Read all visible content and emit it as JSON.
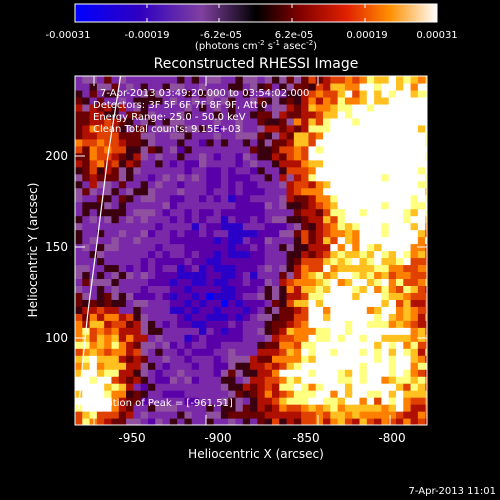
{
  "colorbar": {
    "ticks": [
      "-0.00031",
      "-0.00019",
      "-6.2e-05",
      "6.2e-05",
      "0.00019",
      "0.00031"
    ],
    "units_main": "(photons cm",
    "units_sup1": "-2",
    "units_mid": " s",
    "units_sup2": "-1",
    "units_mid2": " asec",
    "units_sup3": "-2",
    "units_end": ")"
  },
  "plot": {
    "title": "Reconstructed RHESSI Image",
    "xlabel": "Heliocentric X (arcsec)",
    "ylabel": "Heliocentric Y (arcsec)",
    "xticks": [
      "-950",
      "-900",
      "-850",
      "-800"
    ],
    "yticks": [
      "100",
      "150",
      "200"
    ],
    "info_lines": [
      "7-Apr-2013 03:49:20.000 to 03:54:02.000",
      "Detectors: 3F 5F 6F 7F 8F 9F, Att 0",
      "Energy Range: 25.0 - 50.0 keV",
      "Clean     Total counts: 9.15E+03"
    ],
    "peak_text": "Position of Peak = [-961,51]"
  },
  "footer": {
    "timestamp": "7-Apr-2013 11:01"
  },
  "chart_data": {
    "type": "heatmap",
    "title": "Reconstructed RHESSI Image",
    "xlabel": "Heliocentric X (arcsec)",
    "ylabel": "Heliocentric Y (arcsec)",
    "xlim": [
      -970,
      -777
    ],
    "ylim": [
      46,
      246
    ],
    "colorbar_range": [
      -0.00031,
      0.00031
    ],
    "colormap": [
      "#0000ff",
      "#2a00c8",
      "#5a00a8",
      "#7a2aa8",
      "#9050a0",
      "#3a0010",
      "#6a0000",
      "#b01000",
      "#e04000",
      "#ff8000",
      "#ffc020",
      "#ffff80",
      "#ffffff"
    ],
    "peak_position": [
      -961,
      51
    ],
    "limb_curve": [
      [
        -945,
        246
      ],
      [
        -952,
        200
      ],
      [
        -958,
        150
      ],
      [
        -963,
        110
      ],
      [
        -966,
        80
      ],
      [
        -968,
        55
      ]
    ],
    "bright_regions": [
      {
        "x": -962,
        "y": 58,
        "r": 12,
        "level": 1.0
      },
      {
        "x": -958,
        "y": 88,
        "r": 18,
        "level": 0.75
      },
      {
        "x": -960,
        "y": 205,
        "r": 14,
        "level": 0.6
      },
      {
        "x": -795,
        "y": 220,
        "r": 28,
        "level": 0.9
      },
      {
        "x": -830,
        "y": 195,
        "r": 22,
        "level": 0.7
      },
      {
        "x": -800,
        "y": 160,
        "r": 24,
        "level": 0.7
      },
      {
        "x": -835,
        "y": 120,
        "r": 20,
        "level": 0.6
      },
      {
        "x": -810,
        "y": 80,
        "r": 26,
        "level": 0.85
      },
      {
        "x": -850,
        "y": 70,
        "r": 18,
        "level": 0.6
      }
    ],
    "dim_regions": [
      {
        "x": -880,
        "y": 160,
        "r": 30,
        "level": -0.3
      },
      {
        "x": -900,
        "y": 110,
        "r": 25,
        "level": -0.35
      },
      {
        "x": -935,
        "y": 60,
        "r": 14,
        "level": -0.2
      }
    ],
    "peak_text": "Position of Peak = [-961,51]",
    "timestamp": "7-Apr-2013 11:01"
  }
}
